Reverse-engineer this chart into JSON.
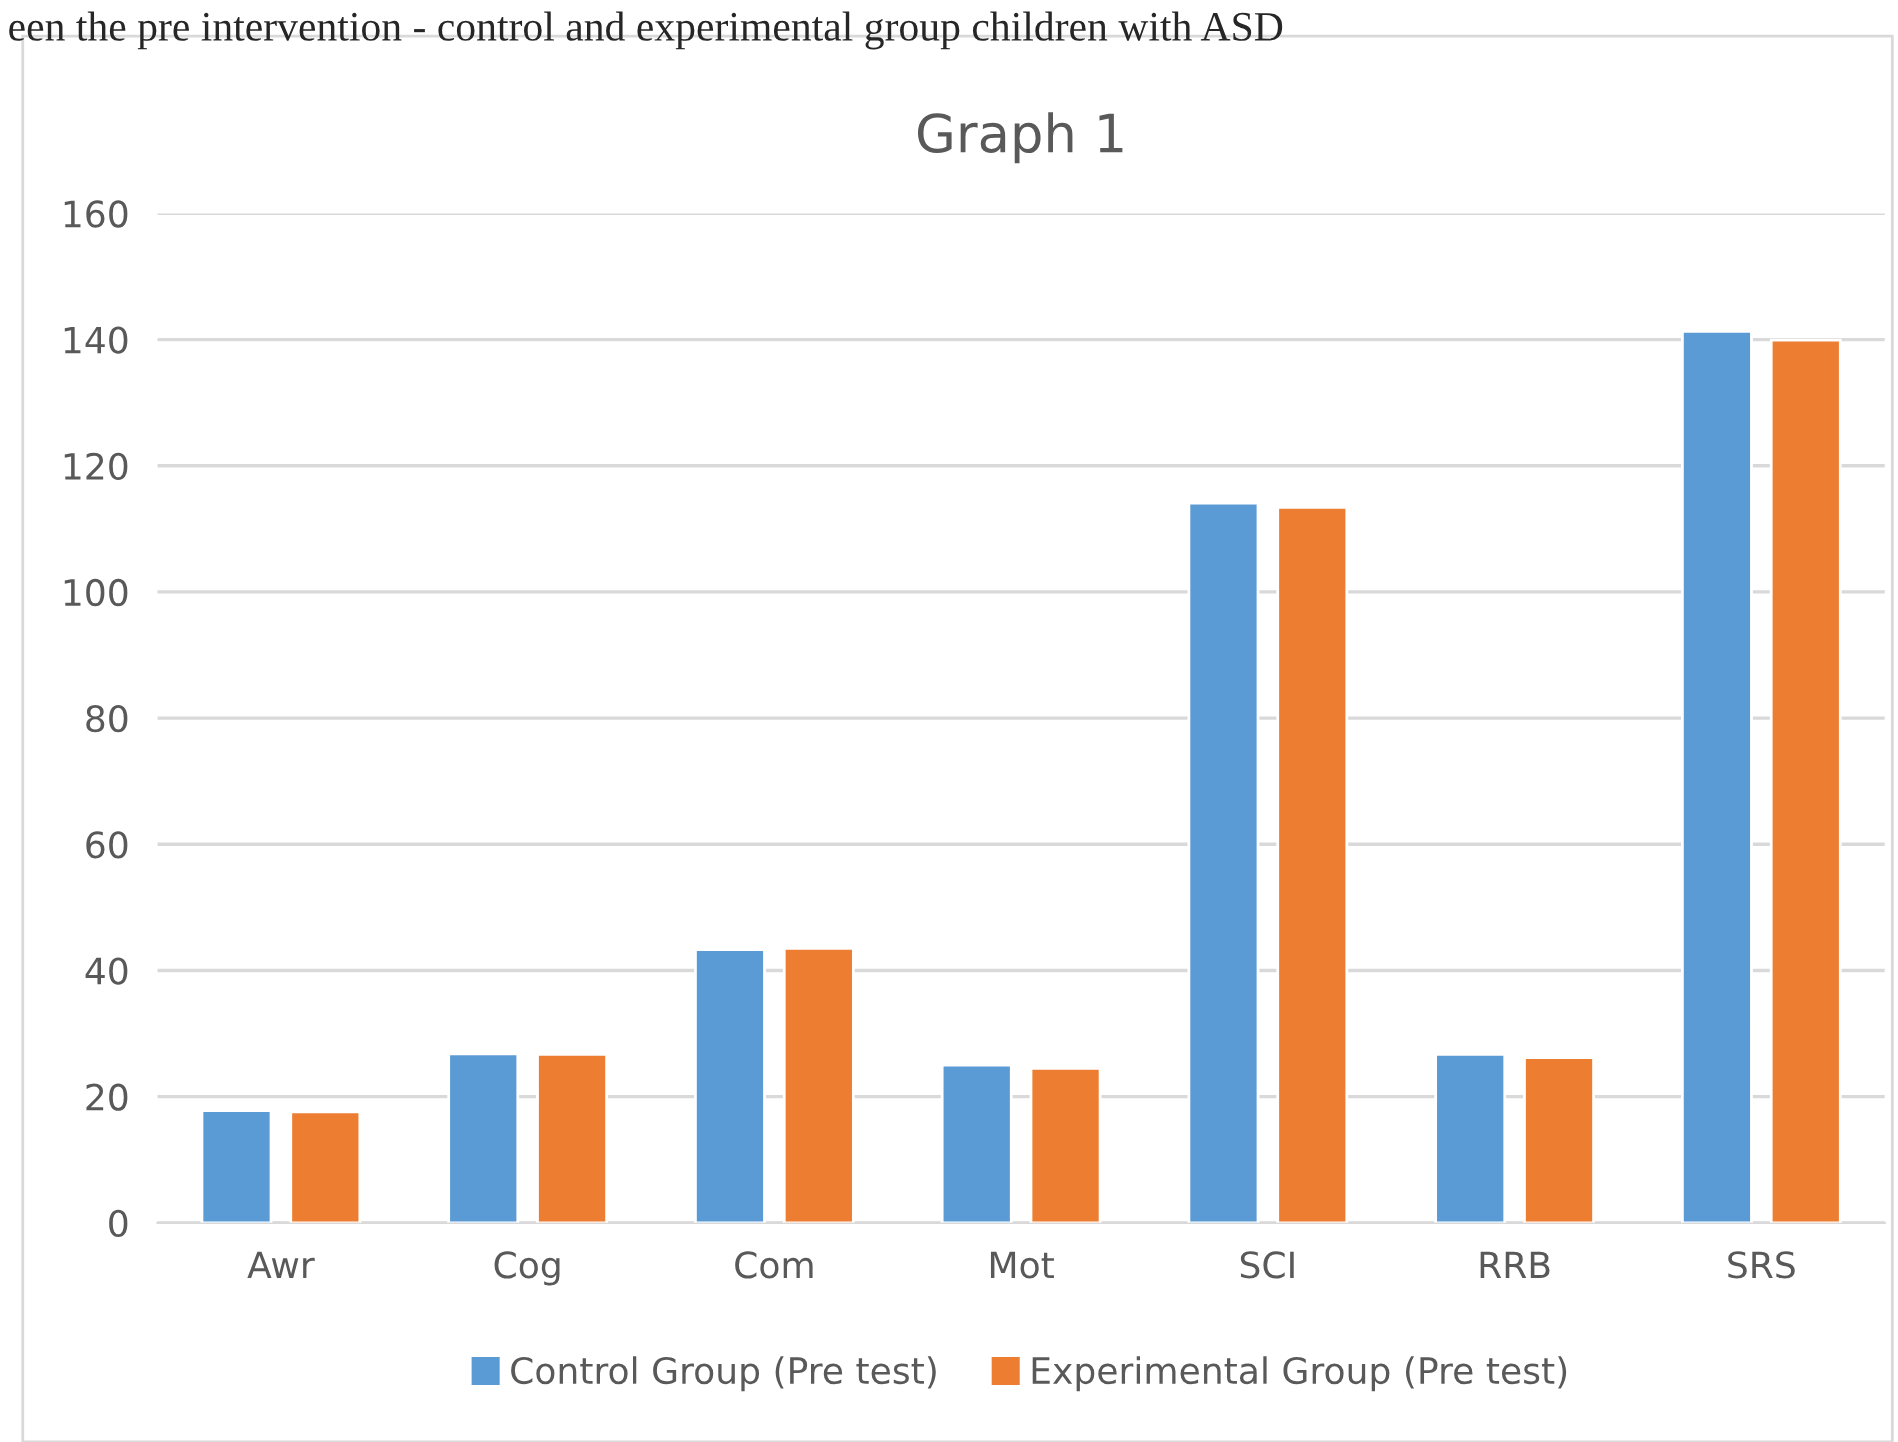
{
  "chart_data": {
    "type": "bar",
    "title": "Graph 1",
    "categories": [
      "Awr",
      "Cog",
      "Com",
      "Mot",
      "SCI",
      "RRB",
      "SRS"
    ],
    "series": [
      {
        "name": "Control Group (Pre test)",
        "color": "#5b9bd5",
        "values": [
          17.8,
          26.8,
          43.3,
          25.0,
          114.1,
          26.7,
          141.3
        ]
      },
      {
        "name": "Experimental Group (Pre test)",
        "color": "#ed7d31",
        "values": [
          17.6,
          26.7,
          43.5,
          24.5,
          113.4,
          26.2,
          139.9
        ]
      }
    ],
    "ylim": [
      0,
      160
    ],
    "yticks": [
      0,
      20,
      40,
      60,
      80,
      100,
      120,
      140,
      160
    ],
    "grid": "y",
    "legend": "bottom",
    "annotations": [
      "een the pre intervention - control and experimental group children with ASD"
    ]
  }
}
